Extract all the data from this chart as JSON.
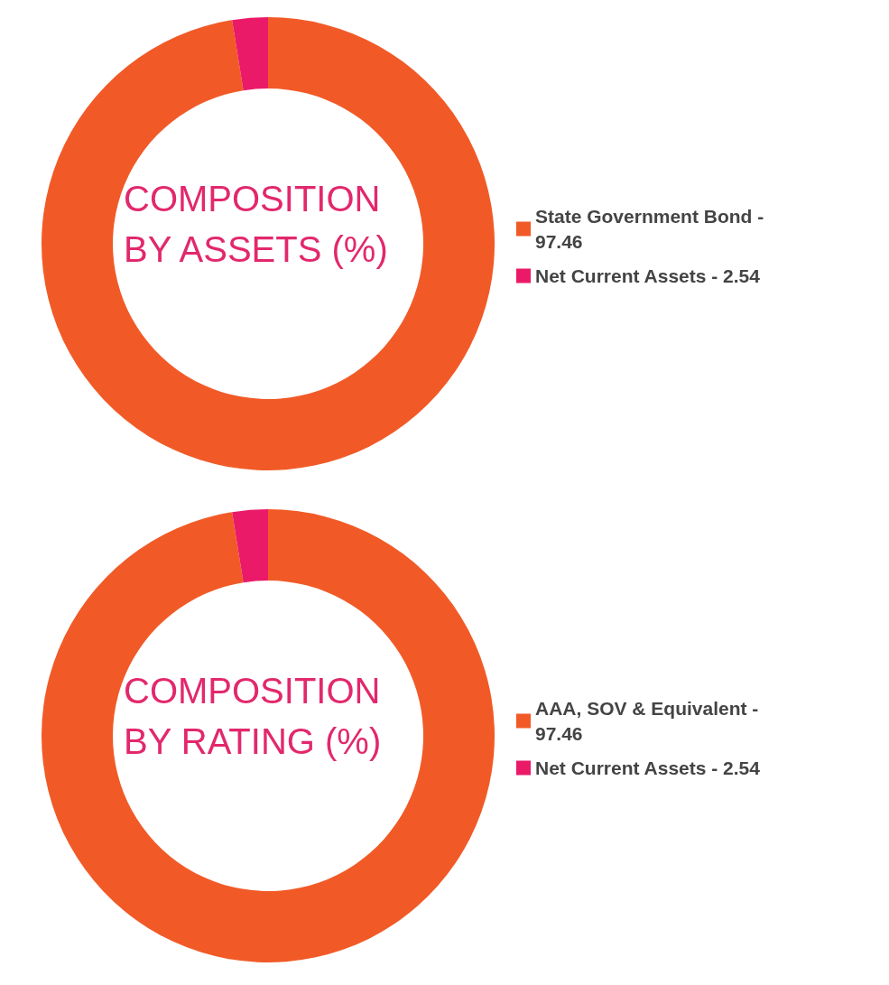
{
  "chart_data": [
    {
      "type": "donut",
      "title": "COMPOSITION BY ASSETS (%)",
      "categories": [
        "State Government Bond - 97.46",
        "Net Current Assets - 2.54"
      ],
      "values": [
        97.46,
        2.54
      ],
      "colors": [
        "#f15a27",
        "#ea1a68"
      ],
      "legend": "right"
    },
    {
      "type": "donut",
      "title": "COMPOSITION BY RATING (%)",
      "categories": [
        "AAA, SOV & Equivalent - 97.46",
        "Net Current Assets - 2.54"
      ],
      "values": [
        97.46,
        2.54
      ],
      "colors": [
        "#f15a27",
        "#ea1a68"
      ],
      "legend": "right"
    }
  ]
}
